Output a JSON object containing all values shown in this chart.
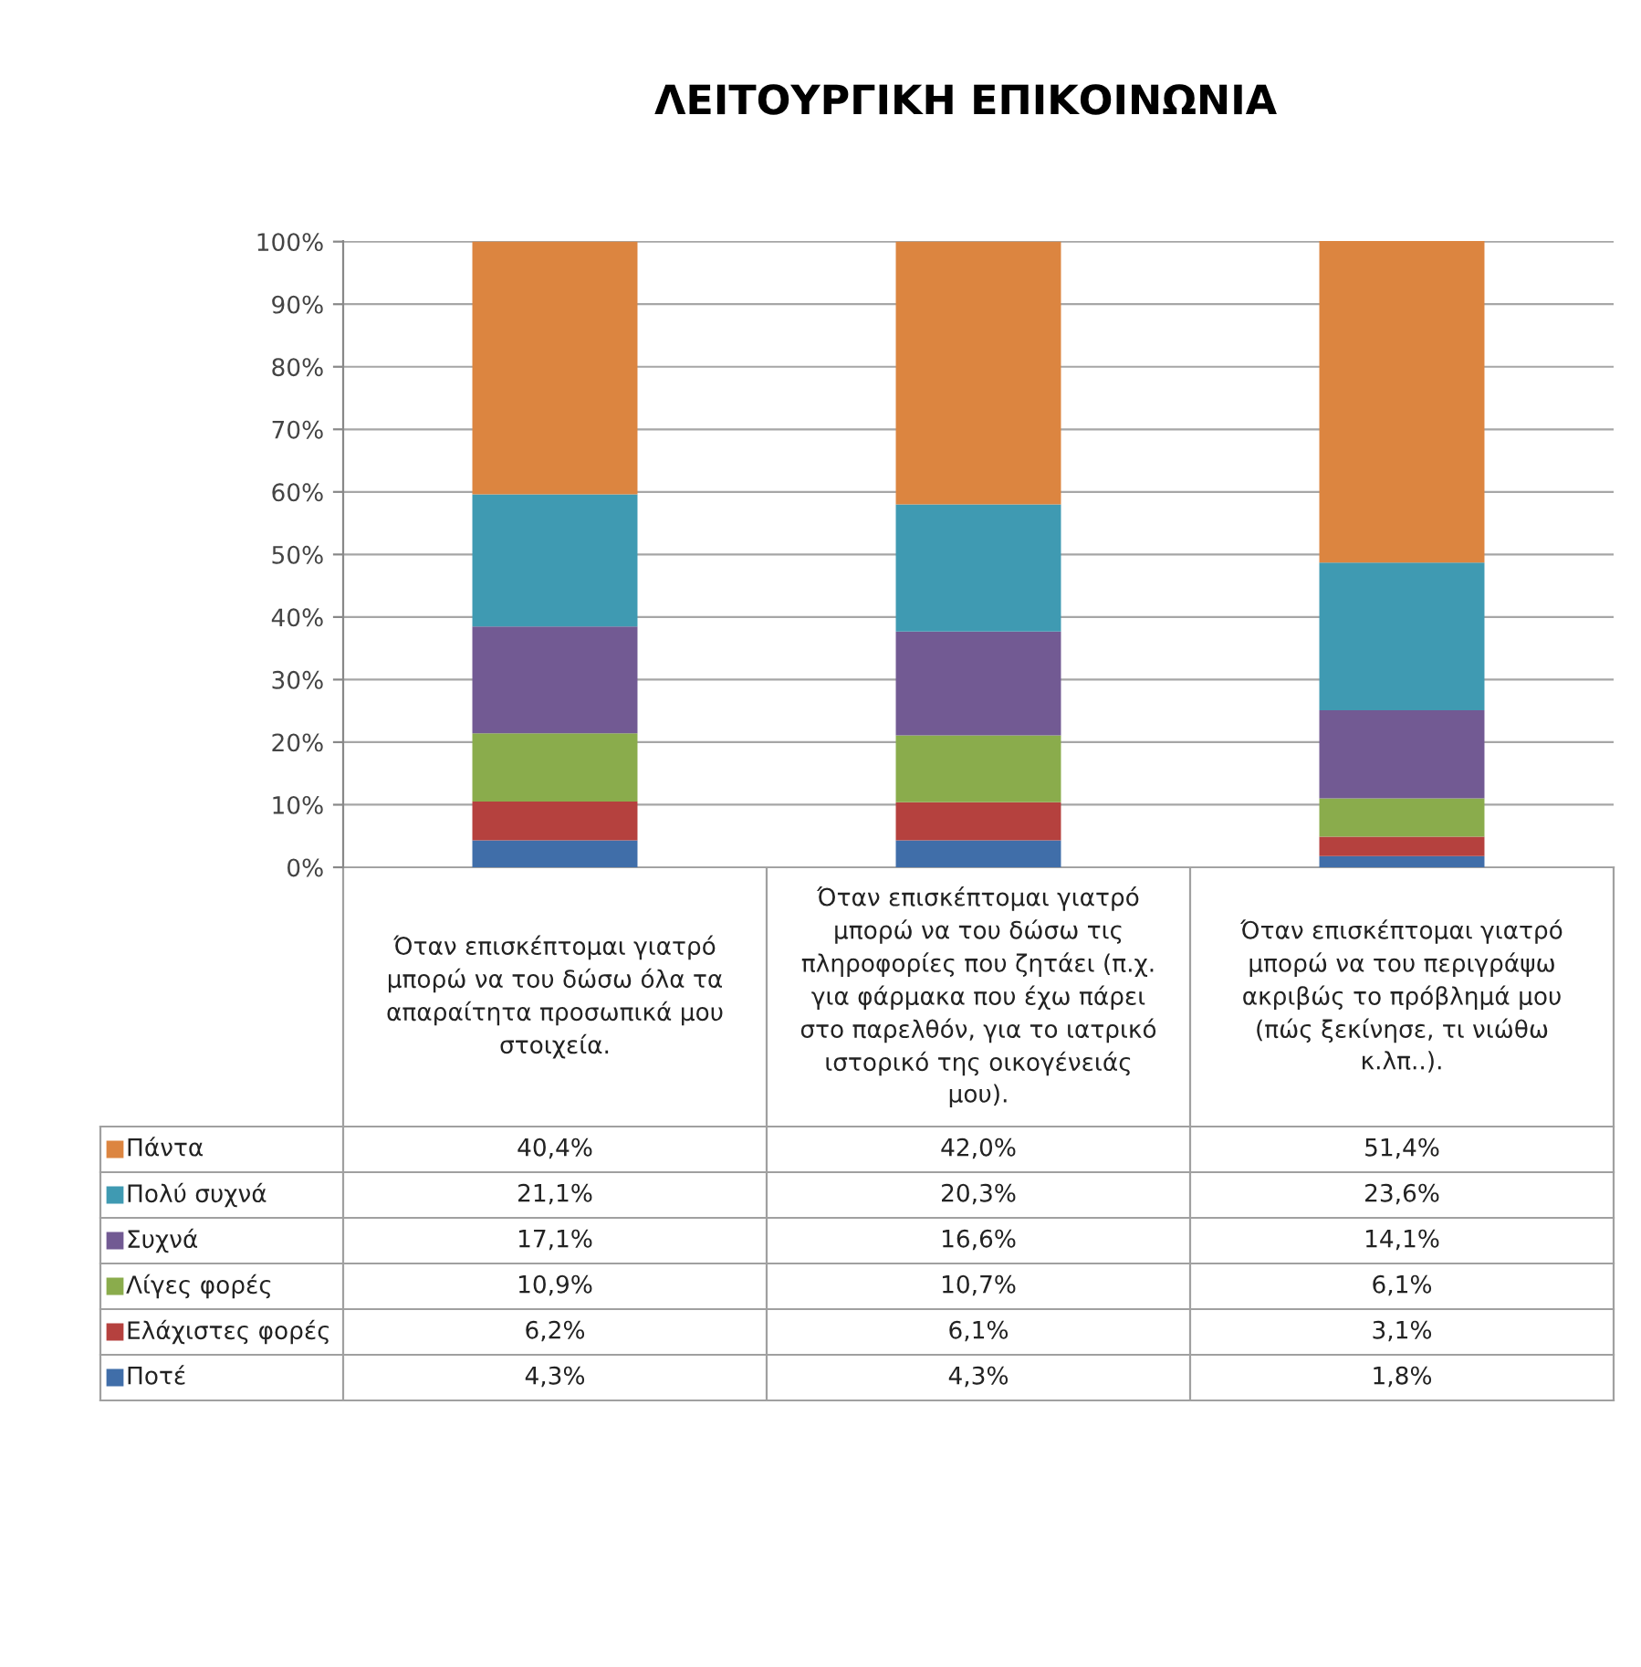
{
  "chart_data": {
    "type": "bar",
    "stacked": true,
    "title": "ΛΕΙΤΟΥΡΓΙΚΗ ΕΠΙΚΟΙΝΩΝΙΑ",
    "categories": [
      "Όταν επισκέπτομαι γιατρό μπορώ να του δώσω όλα τα απαραίτητα προσωπικά μου στοιχεία.",
      "Όταν επισκέπτομαι γιατρό μπορώ να του δώσω τις πληροφορίες που ζητάει (π.χ. για φάρμακα που έχω πάρει στο παρελθόν, για το ιατρικό ιστορικό της οικογένειάς μου).",
      "Όταν επισκέπτομαι γιατρό μπορώ να του περιγράψω ακριβώς το πρόβλημά μου (πώς ξεκίνησε, τι νιώθω κ.λπ..)."
    ],
    "series": [
      {
        "name": "Ποτέ",
        "color": "#406ea9",
        "values": [
          4.3,
          4.3,
          1.8
        ],
        "value_labels": [
          "4,3%",
          "4,3%",
          "1,8%"
        ]
      },
      {
        "name": "Ελάχιστες φορές",
        "color": "#b5413e",
        "values": [
          6.2,
          6.1,
          3.1
        ],
        "value_labels": [
          "6,2%",
          "6,1%",
          "3,1%"
        ]
      },
      {
        "name": "Λίγες φορές",
        "color": "#8aac4c",
        "values": [
          10.9,
          10.7,
          6.1
        ],
        "value_labels": [
          "10,9%",
          "10,7%",
          "6,1%"
        ]
      },
      {
        "name": "Συχνά",
        "color": "#725a93",
        "values": [
          17.1,
          16.6,
          14.1
        ],
        "value_labels": [
          "17,1%",
          "16,6%",
          "14,1%"
        ]
      },
      {
        "name": "Πολύ συχνά",
        "color": "#3f9ab2",
        "values": [
          21.1,
          20.3,
          23.6
        ],
        "value_labels": [
          "21,1%",
          "20,3%",
          "23,6%"
        ]
      },
      {
        "name": "Πάντα",
        "color": "#dc8540",
        "values": [
          40.4,
          42.0,
          51.4
        ],
        "value_labels": [
          "40,4%",
          "42,0%",
          "51,4%"
        ]
      }
    ],
    "ylim": [
      0,
      100.1
    ],
    "yticks": [
      {
        "value": 0,
        "label": "0%"
      },
      {
        "value": 10,
        "label": "10%"
      },
      {
        "value": 20,
        "label": "20%"
      },
      {
        "value": 30,
        "label": "30%"
      },
      {
        "value": 40,
        "label": "40%"
      },
      {
        "value": 50,
        "label": "50%"
      },
      {
        "value": 60,
        "label": "60%"
      },
      {
        "value": 70,
        "label": "70%"
      },
      {
        "value": 80,
        "label": "80%"
      },
      {
        "value": 90,
        "label": "90%"
      },
      {
        "value": 100,
        "label": "100%"
      }
    ],
    "grid": "y",
    "legend": "bottom"
  }
}
